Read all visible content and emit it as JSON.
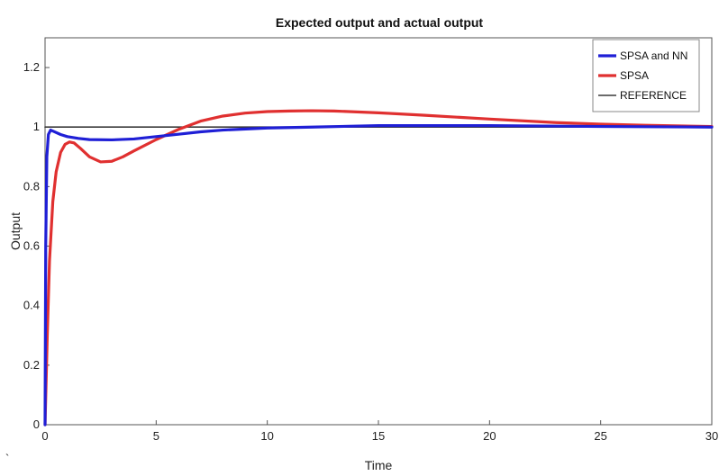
{
  "chart_data": {
    "type": "line",
    "title": "Expected output and actual output",
    "xlabel": "Time",
    "ylabel": "Output",
    "xlim": [
      0,
      30
    ],
    "ylim": [
      0,
      1.3
    ],
    "x_ticks": [
      0,
      5,
      10,
      15,
      20,
      25,
      30
    ],
    "x_tick_labels": [
      "0",
      "5",
      "10",
      "15",
      "20",
      "25",
      "30"
    ],
    "y_ticks": [
      0,
      0.2,
      0.4,
      0.6,
      0.8,
      1,
      1.2
    ],
    "y_tick_labels": [
      "0",
      "0.2",
      "0.4",
      "0.6",
      "0.8",
      "1",
      "1.2"
    ],
    "grid": false,
    "legend_position": "top-right",
    "series": [
      {
        "name": "SPSA and NN",
        "color": "#1f1fd6",
        "x": [
          0,
          0.03,
          0.08,
          0.15,
          0.25,
          0.4,
          0.7,
          1,
          1.5,
          2,
          3,
          4,
          5,
          6,
          7,
          8,
          10,
          12,
          15,
          20,
          25,
          30
        ],
        "y": [
          0,
          0.6,
          0.9,
          0.975,
          0.99,
          0.985,
          0.975,
          0.968,
          0.962,
          0.958,
          0.957,
          0.96,
          0.968,
          0.976,
          0.984,
          0.99,
          0.997,
          1.0,
          1.005,
          1.005,
          1.002,
          1.0
        ]
      },
      {
        "name": "SPSA",
        "color": "#e03030",
        "x": [
          0,
          0.1,
          0.2,
          0.35,
          0.5,
          0.7,
          0.9,
          1.1,
          1.3,
          1.6,
          2,
          2.5,
          3,
          3.5,
          4,
          5,
          6,
          7,
          8,
          9,
          10,
          11,
          12,
          13,
          15,
          17,
          20,
          23,
          25,
          27,
          30
        ],
        "y": [
          0,
          0.3,
          0.55,
          0.75,
          0.85,
          0.915,
          0.942,
          0.95,
          0.947,
          0.928,
          0.9,
          0.883,
          0.885,
          0.9,
          0.92,
          0.958,
          0.992,
          1.02,
          1.037,
          1.047,
          1.052,
          1.054,
          1.055,
          1.054,
          1.048,
          1.04,
          1.027,
          1.015,
          1.01,
          1.006,
          1.002
        ]
      },
      {
        "name": "REFERENCE",
        "color": "#3a3a3a",
        "x": [
          0,
          30
        ],
        "y": [
          1,
          1
        ]
      }
    ]
  },
  "stray_mark": "`"
}
